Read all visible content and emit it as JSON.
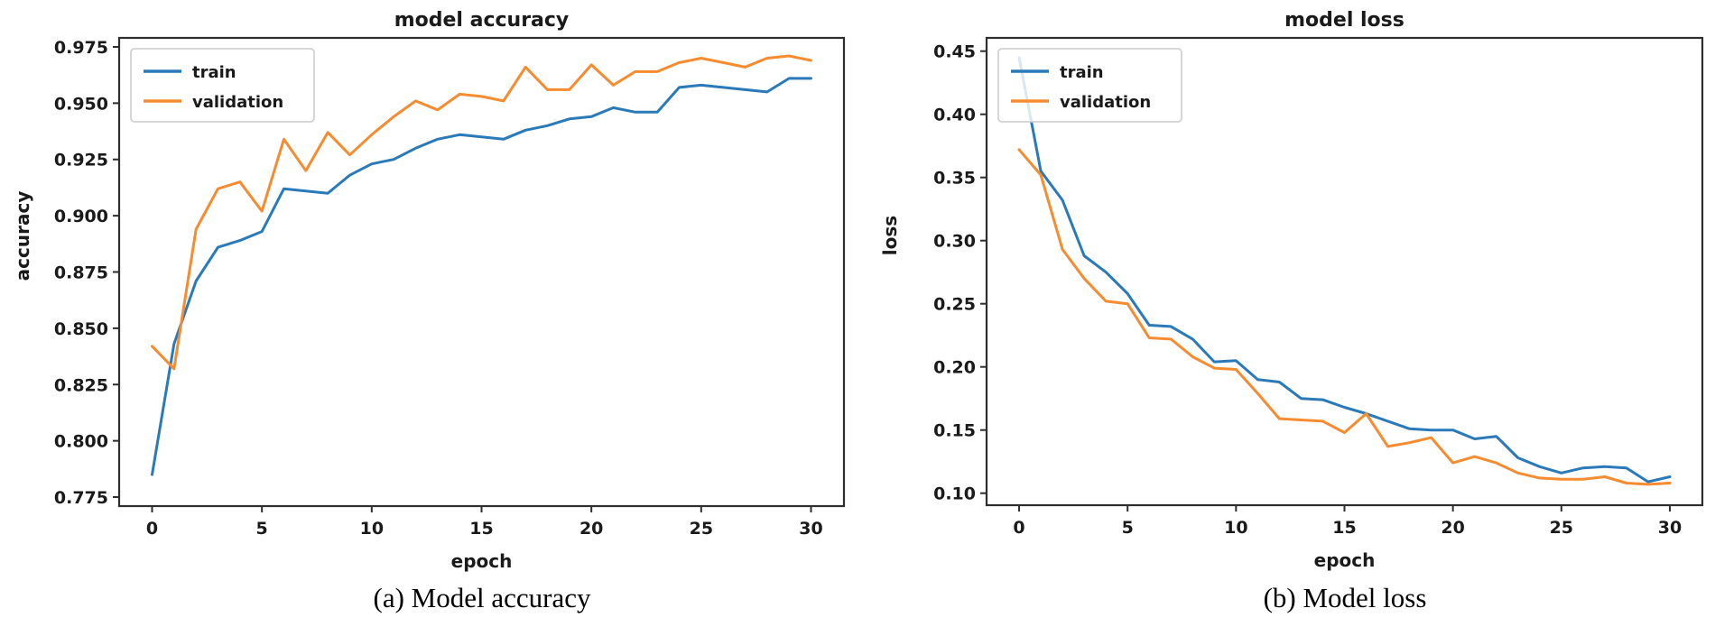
{
  "colors": {
    "train": "#2a7ab9",
    "validation": "#f78b30",
    "spine": "#2e2e2e",
    "text": "#1a1a1a",
    "legend_border": "#cccccc",
    "legend_fill": "rgba(255,255,255,0.82)",
    "background": "#ffffff"
  },
  "chart_data": [
    {
      "type": "line",
      "title": "model accuracy",
      "xlabel": "epoch",
      "ylabel": "accuracy",
      "caption": "(a) Model accuracy",
      "legend_position": "upper left",
      "grid": false,
      "x": [
        0,
        1,
        2,
        3,
        4,
        5,
        6,
        7,
        8,
        9,
        10,
        11,
        12,
        13,
        14,
        15,
        16,
        17,
        18,
        19,
        20,
        21,
        22,
        23,
        24,
        25,
        26,
        27,
        28,
        29,
        30
      ],
      "series": [
        {
          "name": "train",
          "values": [
            0.785,
            0.843,
            0.871,
            0.886,
            0.889,
            0.893,
            0.912,
            0.911,
            0.91,
            0.918,
            0.923,
            0.925,
            0.93,
            0.934,
            0.936,
            0.935,
            0.934,
            0.938,
            0.94,
            0.943,
            0.944,
            0.948,
            0.946,
            0.946,
            0.957,
            0.958,
            0.957,
            0.956,
            0.955,
            0.961,
            0.961
          ]
        },
        {
          "name": "validation",
          "values": [
            0.842,
            0.832,
            0.894,
            0.912,
            0.915,
            0.902,
            0.934,
            0.92,
            0.937,
            0.927,
            0.936,
            0.944,
            0.951,
            0.947,
            0.954,
            0.953,
            0.951,
            0.966,
            0.956,
            0.956,
            0.967,
            0.958,
            0.964,
            0.964,
            0.968,
            0.97,
            0.968,
            0.966,
            0.97,
            0.971,
            0.969
          ]
        }
      ],
      "xlim": [
        -1.5,
        31.5
      ],
      "ylim": [
        0.771,
        0.979
      ],
      "xticks": [
        0,
        5,
        10,
        15,
        20,
        25,
        30
      ],
      "yticks": [
        0.775,
        0.8,
        0.825,
        0.85,
        0.875,
        0.9,
        0.925,
        0.95,
        0.975
      ],
      "ytick_decimals": 3,
      "xtick_decimals": 0
    },
    {
      "type": "line",
      "title": "model loss",
      "xlabel": "epoch",
      "ylabel": "loss",
      "caption": "(b) Model loss",
      "legend_position": "upper left",
      "grid": false,
      "x": [
        0,
        1,
        2,
        3,
        4,
        5,
        6,
        7,
        8,
        9,
        10,
        11,
        12,
        13,
        14,
        15,
        16,
        17,
        18,
        19,
        20,
        21,
        22,
        23,
        24,
        25,
        26,
        27,
        28,
        29,
        30
      ],
      "series": [
        {
          "name": "train",
          "values": [
            0.445,
            0.355,
            0.332,
            0.288,
            0.275,
            0.258,
            0.233,
            0.232,
            0.222,
            0.204,
            0.205,
            0.19,
            0.188,
            0.175,
            0.174,
            0.168,
            0.163,
            0.157,
            0.151,
            0.15,
            0.15,
            0.143,
            0.145,
            0.128,
            0.121,
            0.116,
            0.12,
            0.121,
            0.12,
            0.109,
            0.113
          ]
        },
        {
          "name": "validation",
          "values": [
            0.372,
            0.352,
            0.293,
            0.27,
            0.252,
            0.25,
            0.223,
            0.222,
            0.208,
            0.199,
            0.198,
            0.179,
            0.159,
            0.158,
            0.157,
            0.148,
            0.163,
            0.137,
            0.14,
            0.144,
            0.124,
            0.129,
            0.124,
            0.116,
            0.112,
            0.111,
            0.111,
            0.113,
            0.108,
            0.107,
            0.108
          ]
        }
      ],
      "xlim": [
        -1.5,
        31.5
      ],
      "ylim": [
        0.0905,
        0.4605
      ],
      "xticks": [
        0,
        5,
        10,
        15,
        20,
        25,
        30
      ],
      "yticks": [
        0.1,
        0.15,
        0.2,
        0.25,
        0.3,
        0.35,
        0.4,
        0.45
      ],
      "ytick_decimals": 2,
      "xtick_decimals": 0
    }
  ],
  "legend": {
    "entries": [
      "train",
      "validation"
    ]
  }
}
